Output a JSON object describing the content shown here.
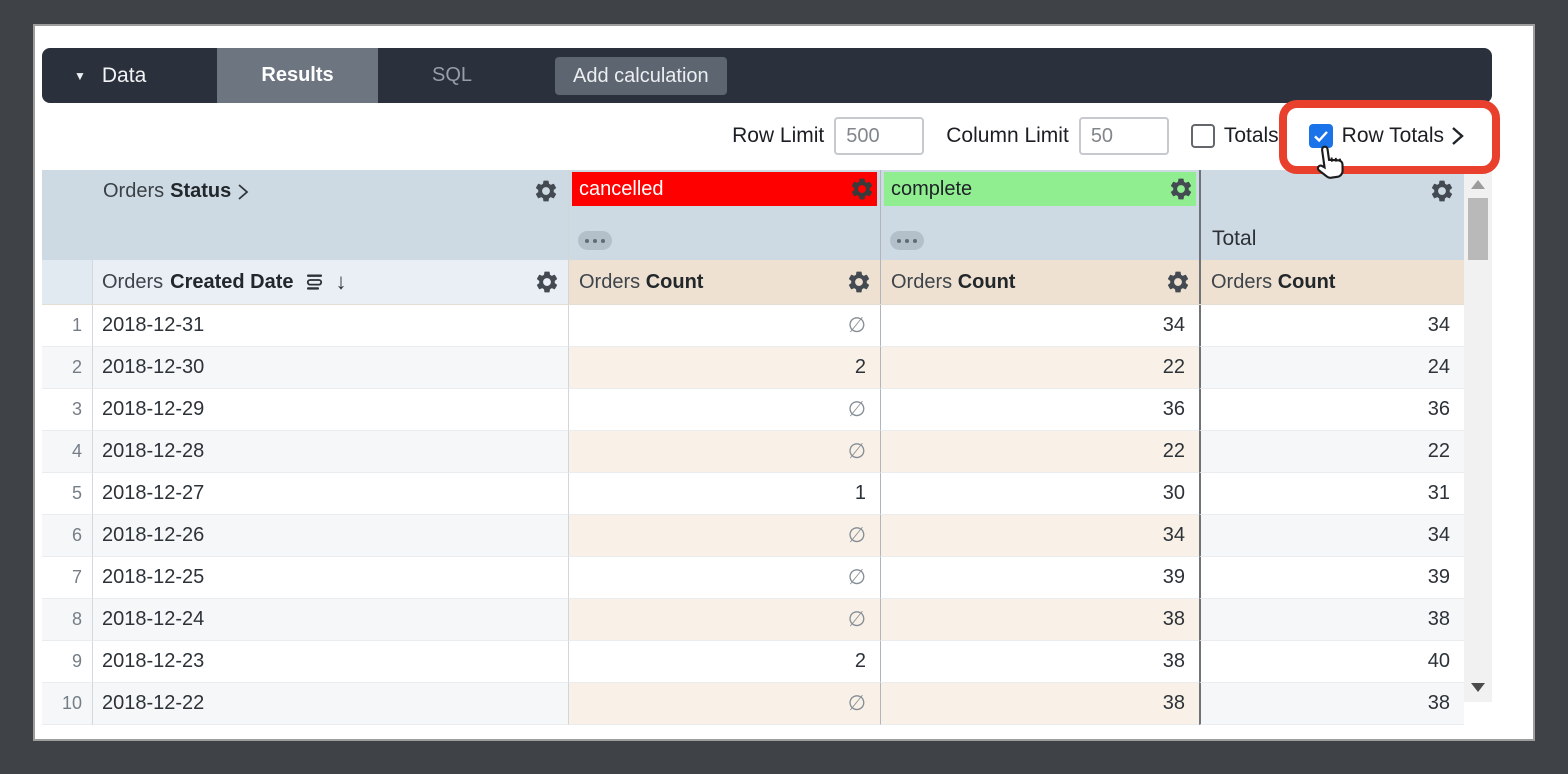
{
  "toolbar": {
    "data": "Data",
    "results": "Results",
    "sql": "SQL",
    "add_calculation": "Add calculation"
  },
  "controls": {
    "row_limit_label": "Row Limit",
    "row_limit_value": "500",
    "column_limit_label": "Column Limit",
    "column_limit_value": "50",
    "totals_label": "Totals",
    "totals_checked": false,
    "row_totals_label": "Row Totals",
    "row_totals_checked": true
  },
  "table": {
    "pivot_prefix": "Orders",
    "pivot_field": "Status",
    "pivot_cancelled": "cancelled",
    "pivot_complete": "complete",
    "total_label": "Total",
    "dim_prefix": "Orders",
    "dim_field": "Created Date",
    "measure_prefix": "Orders",
    "measure_field": "Count",
    "null_symbol": "∅",
    "rows": [
      {
        "n": "1",
        "date": "2018-12-31",
        "cancelled": "∅",
        "complete": "34",
        "total": "34"
      },
      {
        "n": "2",
        "date": "2018-12-30",
        "cancelled": "2",
        "complete": "22",
        "total": "24"
      },
      {
        "n": "3",
        "date": "2018-12-29",
        "cancelled": "∅",
        "complete": "36",
        "total": "36"
      },
      {
        "n": "4",
        "date": "2018-12-28",
        "cancelled": "∅",
        "complete": "22",
        "total": "22"
      },
      {
        "n": "5",
        "date": "2018-12-27",
        "cancelled": "1",
        "complete": "30",
        "total": "31"
      },
      {
        "n": "6",
        "date": "2018-12-26",
        "cancelled": "∅",
        "complete": "34",
        "total": "34"
      },
      {
        "n": "7",
        "date": "2018-12-25",
        "cancelled": "∅",
        "complete": "39",
        "total": "39"
      },
      {
        "n": "8",
        "date": "2018-12-24",
        "cancelled": "∅",
        "complete": "38",
        "total": "38"
      },
      {
        "n": "9",
        "date": "2018-12-23",
        "cancelled": "2",
        "complete": "38",
        "total": "40"
      },
      {
        "n": "10",
        "date": "2018-12-22",
        "cancelled": "∅",
        "complete": "38",
        "total": "38"
      }
    ]
  },
  "colors": {
    "cancelled_bg": "#fe0000",
    "complete_bg": "#90ee90",
    "checkbox_blue": "#1a73e8",
    "annotation_red": "#e8402d"
  }
}
